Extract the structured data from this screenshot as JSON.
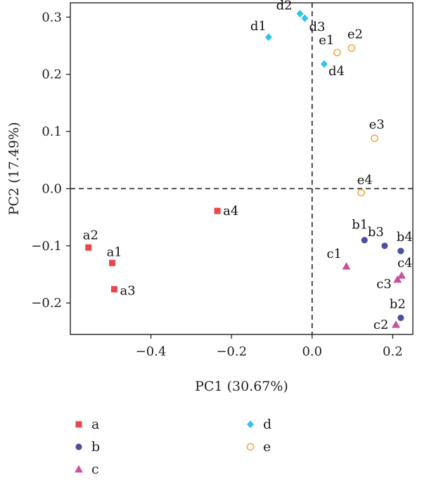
{
  "chart_data": {
    "type": "scatter",
    "xlabel": "PC1 (30.67%)",
    "ylabel": "PC2 (17.49%)",
    "xlim": [
      -0.6,
      0.25
    ],
    "ylim": [
      -0.255,
      0.325
    ],
    "xticks": [
      -0.4,
      -0.2,
      0.0,
      0.2
    ],
    "xtick_labels": [
      "−0.4",
      "−0.2",
      "0.0",
      "0.2"
    ],
    "yticks": [
      -0.2,
      -0.1,
      0.0,
      0.1,
      0.2,
      0.3
    ],
    "ytick_labels": [
      "−0.2",
      "−0.1",
      "0.0",
      "0.1",
      "0.2",
      "0.3"
    ],
    "reference_lines": {
      "x": 0,
      "y": 0,
      "style": "dashed"
    },
    "grid": false,
    "legend_position": "bottom",
    "series": [
      {
        "name": "a",
        "marker": "square",
        "color": "#e8474b",
        "filled": true,
        "points": [
          {
            "label": "a1",
            "x": -0.496,
            "y": -0.13
          },
          {
            "label": "a2",
            "x": -0.555,
            "y": -0.103
          },
          {
            "label": "a3",
            "x": -0.491,
            "y": -0.176
          },
          {
            "label": "a4",
            "x": -0.235,
            "y": -0.039
          }
        ]
      },
      {
        "name": "b",
        "marker": "circle",
        "color": "#4d4fa1",
        "filled": true,
        "points": [
          {
            "label": "b1",
            "x": 0.13,
            "y": -0.09
          },
          {
            "label": "b2",
            "x": 0.22,
            "y": -0.226
          },
          {
            "label": "b3",
            "x": 0.18,
            "y": -0.1
          },
          {
            "label": "b4",
            "x": 0.22,
            "y": -0.109
          }
        ]
      },
      {
        "name": "c",
        "marker": "triangle",
        "color": "#c8529b",
        "filled": true,
        "points": [
          {
            "label": "c1",
            "x": 0.085,
            "y": -0.136
          },
          {
            "label": "c2",
            "x": 0.208,
            "y": -0.238
          },
          {
            "label": "c3",
            "x": 0.212,
            "y": -0.159
          },
          {
            "label": "c4",
            "x": 0.222,
            "y": -0.152
          }
        ]
      },
      {
        "name": "d",
        "marker": "diamond",
        "color": "#33c3eb",
        "filled": true,
        "points": [
          {
            "label": "d1",
            "x": -0.108,
            "y": 0.265
          },
          {
            "label": "d2",
            "x": -0.03,
            "y": 0.306
          },
          {
            "label": "d3",
            "x": -0.018,
            "y": 0.298
          },
          {
            "label": "d4",
            "x": 0.03,
            "y": 0.218
          }
        ]
      },
      {
        "name": "e",
        "marker": "circle",
        "color": "#f2a541",
        "filled": false,
        "points": [
          {
            "label": "e1",
            "x": 0.062,
            "y": 0.238
          },
          {
            "label": "e2",
            "x": 0.098,
            "y": 0.246
          },
          {
            "label": "e3",
            "x": 0.155,
            "y": 0.088
          },
          {
            "label": "e4",
            "x": 0.122,
            "y": -0.007
          }
        ]
      }
    ]
  }
}
